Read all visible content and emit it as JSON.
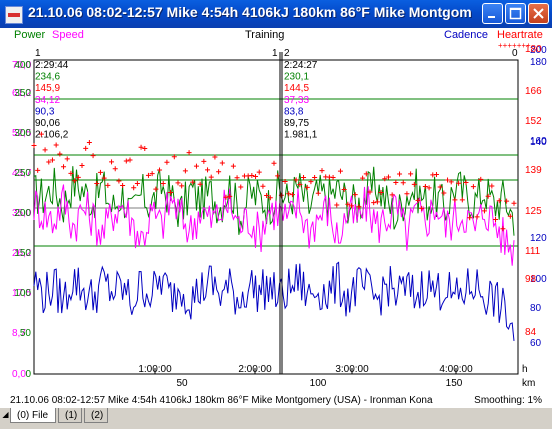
{
  "window": {
    "title": "21.10.06 08:02-12:57 Mike 4:54h 4106kJ 180km 86°F Mike Montgomery (USA) - Ironman Kona"
  },
  "legend": {
    "power": "Power",
    "speed": "Speed",
    "training": "Training",
    "cadence": "Cadence",
    "heartrate": "Heartrate",
    "heartrate_marker": "+++++++"
  },
  "colors": {
    "power": "#008000",
    "speed": "#ff00ff",
    "cadence": "#0000c0",
    "heartrate": "#ff0000"
  },
  "axes": {
    "speed_ticks": [
      "70,0",
      "61,2",
      "52,5",
      "43,7",
      "35,0",
      "26,2",
      "17,5",
      "8,7",
      "0,0"
    ],
    "power_ticks": [
      "400",
      "350",
      "300",
      "250",
      "200",
      "150",
      "100",
      "50",
      "0"
    ],
    "cadence_ticks": [
      "200",
      "180",
      "160",
      "140",
      "120",
      "100",
      "80",
      "60"
    ],
    "heartrate_ticks": [
      "180",
      "166",
      "152",
      "139",
      "125",
      "111",
      "98",
      "84"
    ],
    "time_ticks": [
      "1:00:00",
      "2:00:00",
      "3:00:00",
      "4:00:00"
    ],
    "time_unit": "h",
    "distance_ticks": [
      "50",
      "100",
      "150"
    ],
    "distance_unit": "km"
  },
  "cursors": [
    {
      "num_left": "1",
      "time": "2:29:44",
      "power": "234,6",
      "hr": "145,9",
      "speed": "34,12",
      "cadence": "90,3",
      "avg": "90,06",
      "energy": "2.106,2"
    },
    {
      "num_left": "1",
      "num_right": "2",
      "time": "2:24:27",
      "power": "230,1",
      "hr": "144,5",
      "speed": "37,33",
      "cadence": "83,8",
      "avg": "89,75",
      "energy": "1.981,1"
    }
  ],
  "right_marker": "0",
  "status": {
    "left": "21.10.06 08:02-12:57 Mike 4:54h 4106kJ 180km 86°F Mike Montgomery (USA) - Ironman Kona",
    "right": "Smoothing: 1%"
  },
  "tabs": [
    "(0) File",
    "(1)",
    "(2)"
  ],
  "chart_data": {
    "type": "line",
    "title": "Training",
    "x_range_hours": [
      0,
      4.9
    ],
    "series": [
      {
        "name": "Power",
        "axis": "left",
        "ylim": [
          0,
          400
        ],
        "values": [
          230,
          225,
          240,
          215,
          245,
          235,
          220,
          240,
          210,
          230,
          200,
          230,
          215,
          240,
          225,
          205,
          235,
          220,
          230,
          215,
          240,
          200,
          230,
          225,
          215,
          235,
          220,
          240,
          210,
          230,
          225,
          235,
          220,
          215,
          230,
          240,
          220,
          200,
          230,
          235,
          220,
          225,
          210,
          240,
          230,
          220,
          235,
          215,
          225,
          200
        ]
      },
      {
        "name": "Speed",
        "axis": "left",
        "ylim": [
          0,
          70
        ],
        "values": [
          38,
          36,
          34,
          39,
          33,
          37,
          35,
          31,
          36,
          38,
          34,
          30,
          36,
          33,
          39,
          35,
          32,
          37,
          34,
          36,
          38,
          33,
          35,
          31,
          37,
          36,
          34,
          38,
          32,
          35,
          37,
          30,
          36,
          34,
          38,
          33,
          35,
          37,
          31,
          36,
          34,
          38,
          33,
          35,
          36,
          32,
          37,
          34,
          30,
          28
        ]
      },
      {
        "name": "Cadence",
        "axis": "right",
        "ylim": [
          50,
          200
        ],
        "values": [
          95,
          88,
          92,
          85,
          96,
          90,
          86,
          94,
          89,
          91,
          84,
          93,
          88,
          95,
          87,
          92,
          86,
          90,
          94,
          88,
          91,
          85,
          93,
          89,
          92,
          86,
          90,
          95,
          87,
          91,
          88,
          94,
          86,
          92,
          90,
          85,
          93,
          88,
          91,
          87,
          94,
          89,
          92,
          85,
          90,
          93,
          88,
          86,
          80,
          70
        ]
      },
      {
        "name": "Heartrate",
        "axis": "right",
        "ylim": [
          75,
          180
        ],
        "values": [
          150,
          149,
          148,
          147,
          147,
          146,
          146,
          145,
          145,
          145,
          144,
          144,
          144,
          143,
          143,
          143,
          142,
          142,
          142,
          141,
          141,
          141,
          140,
          140,
          140,
          140,
          139,
          139,
          139,
          138,
          138,
          138,
          138,
          137,
          137,
          137,
          137,
          136,
          136,
          136,
          136,
          136,
          135,
          135,
          135,
          134,
          134,
          133,
          130,
          126
        ]
      }
    ]
  }
}
